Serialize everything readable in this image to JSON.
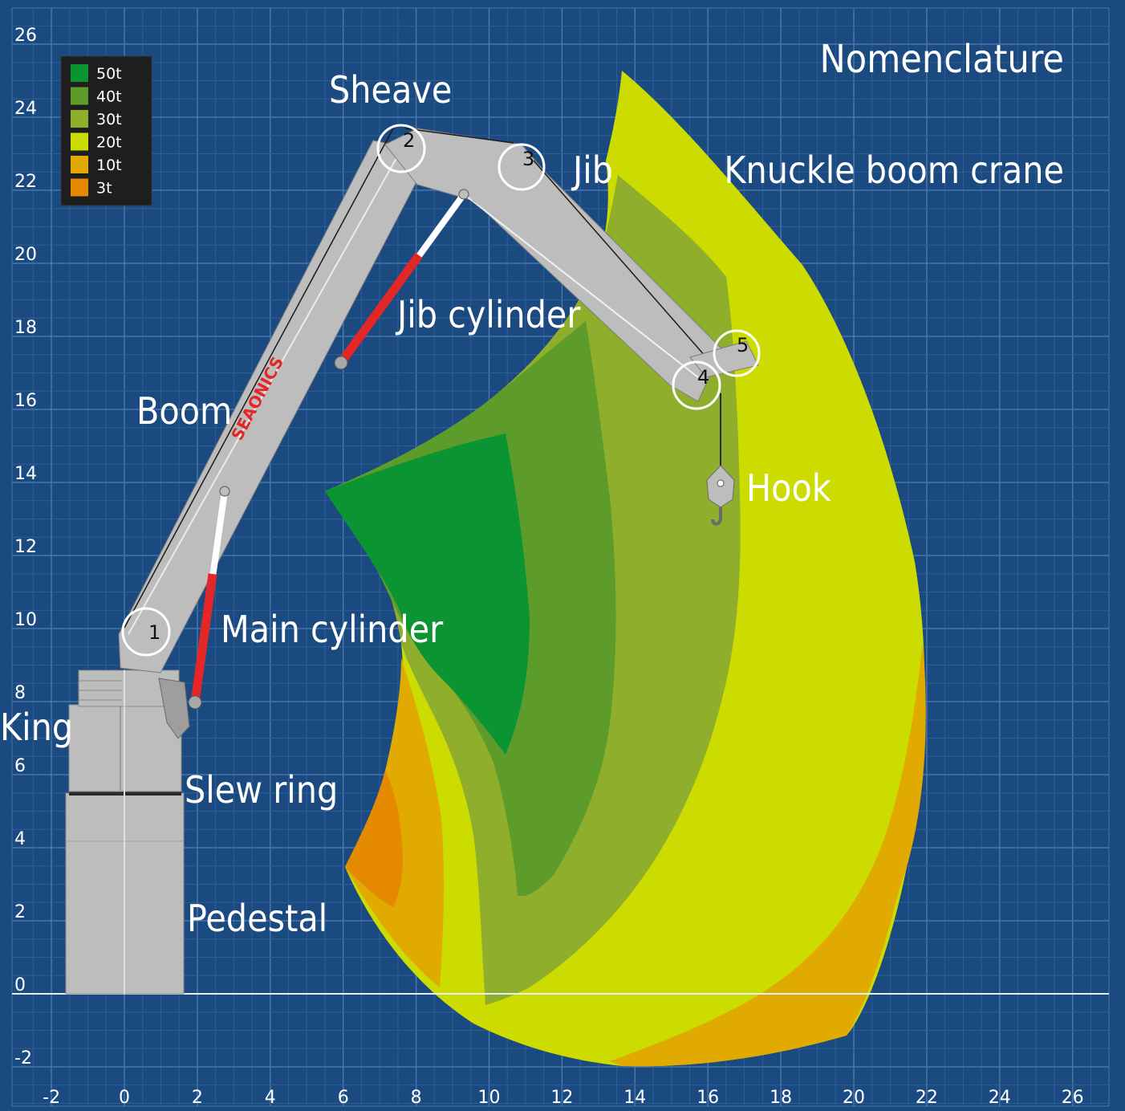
{
  "title": "Nomenclature",
  "subtitle": "Knuckle boom crane",
  "colors": {
    "background": "#1b4a80",
    "grid_minor": "#2d5f97",
    "grid_major": "#4876ad",
    "cap_50t": "#0a9432",
    "cap_40t": "#5d9c2b",
    "cap_30t": "#8fae2b",
    "cap_20t": "#ccdc00",
    "cap_10t": "#e1aa00",
    "cap_3t": "#e58a00",
    "steel": "#bdbdbd",
    "cylinder": "#e32626"
  },
  "legend": {
    "entries": [
      {
        "label": "50t",
        "color": "#0a9432"
      },
      {
        "label": "40t",
        "color": "#5d9c2b"
      },
      {
        "label": "30t",
        "color": "#8fae2b"
      },
      {
        "label": "20t",
        "color": "#ccdc00"
      },
      {
        "label": "10t",
        "color": "#e1aa00"
      },
      {
        "label": "3t",
        "color": "#e58a00"
      }
    ]
  },
  "axes": {
    "x_ticks": [
      "-2",
      "0",
      "2",
      "4",
      "6",
      "8",
      "10",
      "12",
      "14",
      "16",
      "18",
      "20",
      "22",
      "24",
      "26"
    ],
    "y_ticks": [
      "26",
      "24",
      "22",
      "20",
      "18",
      "16",
      "14",
      "12",
      "10",
      "8",
      "6",
      "4",
      "2",
      "0",
      "-2"
    ],
    "x_range": [
      -2.5,
      27.5
    ],
    "y_range": [
      -3,
      27
    ]
  },
  "labels": {
    "sheave": "Sheave",
    "jib": "Jib",
    "jib_cylinder": "Jib cylinder",
    "boom": "Boom",
    "main_cylinder": "Main cylinder",
    "king": "King",
    "slew_ring": "Slew ring",
    "pedestal": "Pedestal",
    "hook": "Hook"
  },
  "brand": "SEAONICS",
  "joints": [
    "1",
    "2",
    "3",
    "4",
    "5"
  ]
}
